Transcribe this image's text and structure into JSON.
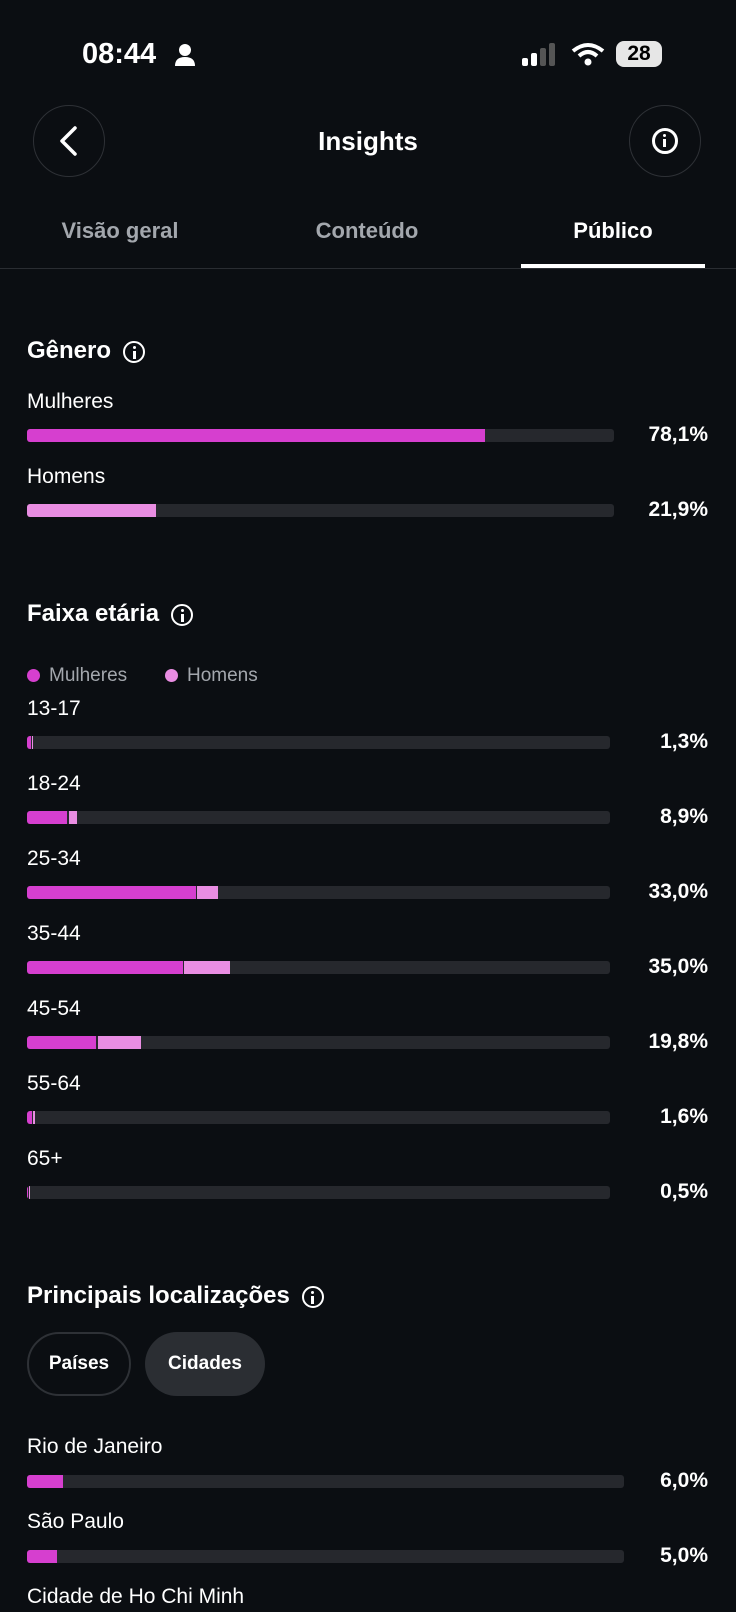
{
  "status_bar": {
    "time": "08:44",
    "battery": "28"
  },
  "header": {
    "title": "Insights"
  },
  "tabs": [
    "Visão geral",
    "Conteúdo",
    "Público"
  ],
  "gender": {
    "title": "Gênero",
    "categories": [
      "Mulheres",
      "Homens"
    ],
    "values": [
      78.1,
      21.9
    ],
    "value_labels": [
      "78,1%",
      "21,9%"
    ],
    "colors": [
      "#d63fcf",
      "#e98de2"
    ],
    "xlim": [
      0,
      100
    ]
  },
  "age": {
    "title": "Faixa etária",
    "categories": [
      "13-17",
      "18-24",
      "25-34",
      "35-44",
      "45-54",
      "55-64",
      "65+"
    ],
    "series": [
      {
        "name": "Mulheres",
        "color": "#d63fcf",
        "values": [
          0.9,
          7.2,
          29.2,
          27.0,
          12.1,
          1.1,
          0.4
        ]
      },
      {
        "name": "Homens",
        "color": "#e98de2",
        "values": [
          0.4,
          1.7,
          3.8,
          8.0,
          7.7,
          0.5,
          0.1
        ]
      }
    ],
    "values": [
      1.3,
      8.9,
      33.0,
      35.0,
      19.8,
      1.6,
      0.5
    ],
    "value_labels": [
      "1,3%",
      "8,9%",
      "33,0%",
      "35,0%",
      "19,8%",
      "1,6%",
      "0,5%"
    ],
    "xlim": [
      0,
      100
    ]
  },
  "locations": {
    "title": "Principais localizações",
    "filters": [
      "Países",
      "Cidades"
    ],
    "categories": [
      "Rio de Janeiro",
      "São Paulo",
      "Cidade de Ho Chi Minh"
    ],
    "values": [
      6.0,
      5.0,
      null
    ],
    "value_labels": [
      "6,0%",
      "5,0%",
      null
    ],
    "color": "#d63fcf",
    "xlim": [
      0,
      100
    ]
  }
}
